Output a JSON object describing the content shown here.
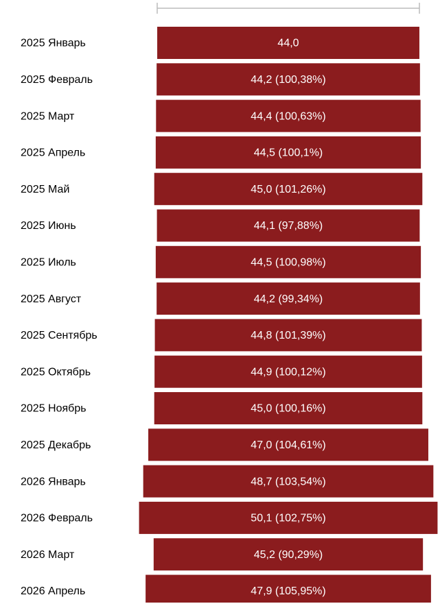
{
  "chart_data": {
    "type": "funnel",
    "categories": [
      "2025 Январь",
      "2025 Февраль",
      "2025 Март",
      "2025 Апрель",
      "2025 Май",
      "2025 Июнь",
      "2025 Июль",
      "2025 Август",
      "2025 Сентябрь",
      "2025 Октябрь",
      "2025 Ноябрь",
      "2025 Декабрь",
      "2026 Январь",
      "2026 Февраль",
      "2026 Март",
      "2026 Апрель"
    ],
    "values": [
      44.0,
      44.2,
      44.4,
      44.5,
      45.0,
      44.1,
      44.5,
      44.2,
      44.8,
      44.9,
      45.0,
      47.0,
      48.7,
      50.1,
      45.2,
      47.9
    ],
    "value_labels": [
      "44,0",
      "44,2 (100,38%)",
      "44,4 (100,63%)",
      "44,5 (100,1%)",
      "45,0 (101,26%)",
      "44,1 (97,88%)",
      "44,5 (100,98%)",
      "44,2 (99,34%)",
      "44,8 (101,39%)",
      "44,9 (100,12%)",
      "45,0 (100,16%)",
      "47,0 (104,61%)",
      "48,7 (103,54%)",
      "50,1 (102,75%)",
      "45,2 (90,29%)",
      "47,9 (105,95%)"
    ],
    "color": "#8b1c1e"
  }
}
